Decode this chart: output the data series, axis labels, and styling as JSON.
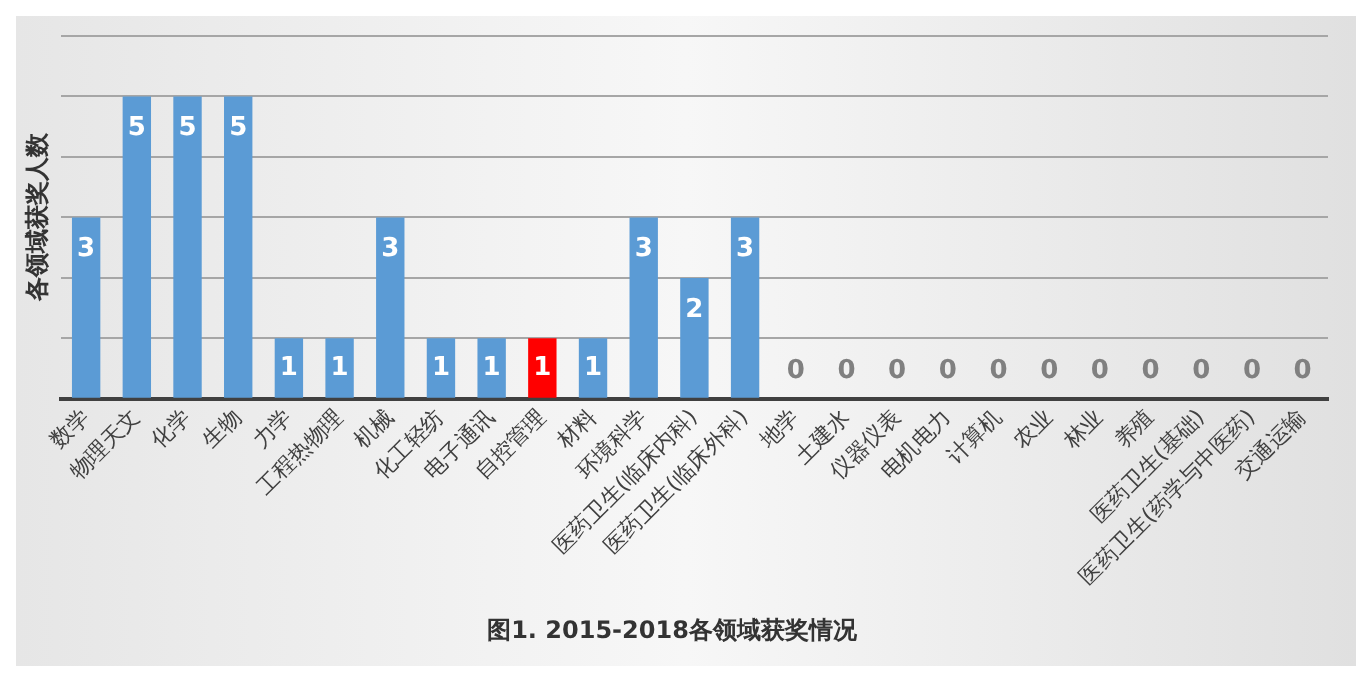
{
  "chart_data": {
    "type": "bar",
    "title": "图1. 2015-2018各领域获奖情况",
    "ylabel": "各领域获奖人数",
    "categories": [
      "数学",
      "物理天文",
      "化学",
      "生物",
      "力学",
      "工程热物理",
      "机械",
      "化工轻纺",
      "电子通讯",
      "自控管理",
      "材料",
      "环境科学",
      "医药卫生(临床内科)",
      "医药卫生(临床外科)",
      "地学",
      "土建水",
      "仪器仪表",
      "电机电力",
      "计算机",
      "农业",
      "林业",
      "养殖",
      "医药卫生(基础)",
      "医药卫生(药学与中医药)",
      "交通运输"
    ],
    "values": [
      3,
      5,
      5,
      5,
      1,
      1,
      3,
      1,
      1,
      1,
      1,
      3,
      2,
      3,
      0,
      0,
      0,
      0,
      0,
      0,
      0,
      0,
      0,
      0,
      0
    ],
    "colors": [
      "#5b9bd5",
      "#5b9bd5",
      "#5b9bd5",
      "#5b9bd5",
      "#5b9bd5",
      "#5b9bd5",
      "#5b9bd5",
      "#5b9bd5",
      "#5b9bd5",
      "#ff0000",
      "#5b9bd5",
      "#5b9bd5",
      "#5b9bd5",
      "#5b9bd5",
      "#5b9bd5",
      "#5b9bd5",
      "#5b9bd5",
      "#5b9bd5",
      "#5b9bd5",
      "#5b9bd5",
      "#5b9bd5",
      "#5b9bd5",
      "#5b9bd5",
      "#5b9bd5",
      "#5b9bd5"
    ],
    "ylim": [
      0,
      6
    ],
    "yticks": [
      {
        "value": 0,
        "label": null
      },
      {
        "value": 1,
        "label": null
      },
      {
        "value": 2,
        "label": null
      },
      {
        "value": 3,
        "label": null
      },
      {
        "value": 4,
        "label": null
      },
      {
        "value": 5,
        "label": null
      },
      {
        "value": 6,
        "label": null
      }
    ],
    "grid": "y",
    "tick_labels": "x",
    "data_labels": true,
    "legend": false
  }
}
